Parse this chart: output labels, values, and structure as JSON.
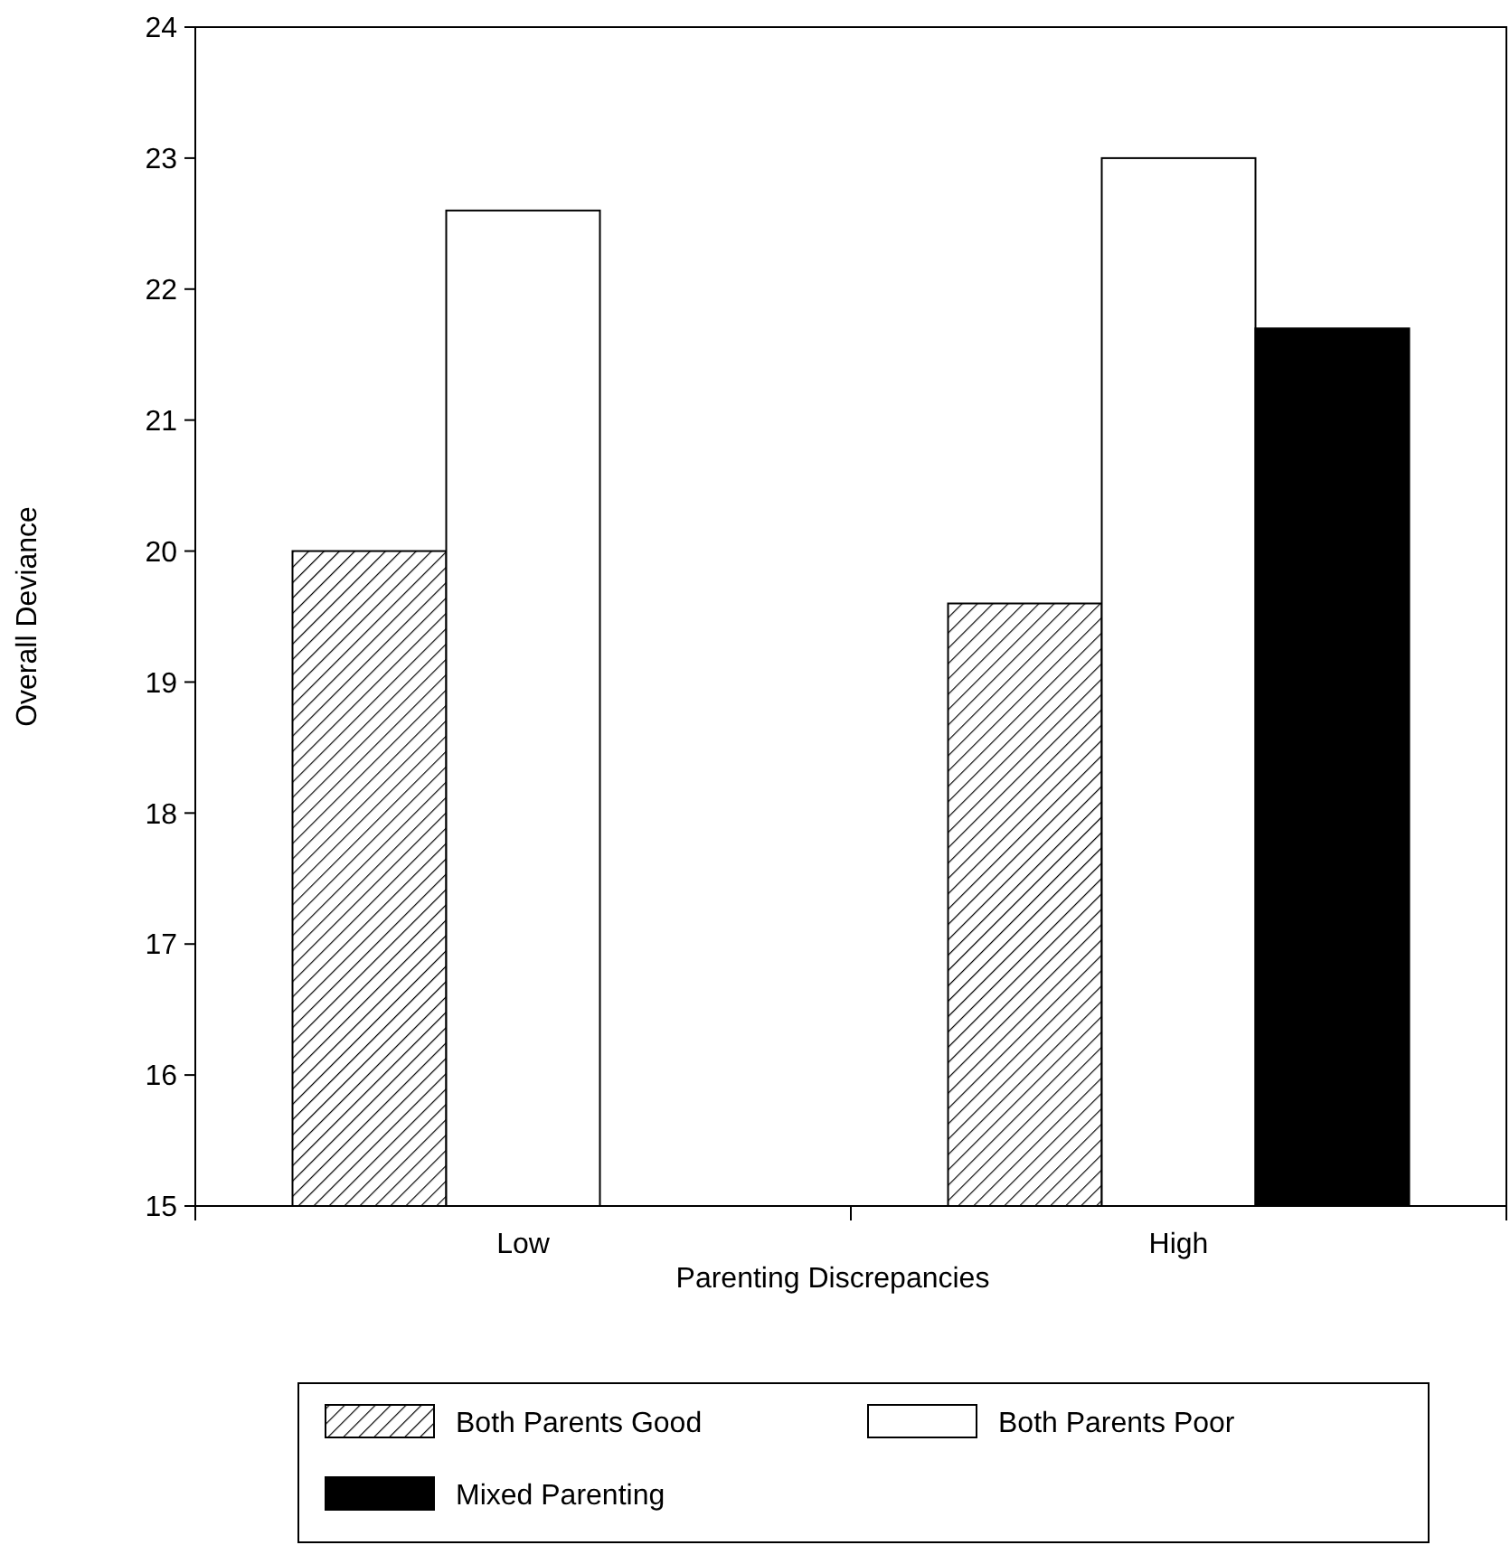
{
  "chart_data": {
    "type": "bar",
    "xlabel": "Parenting Discrepancies",
    "ylabel": "Overall Deviance",
    "categories": [
      "Low",
      "High"
    ],
    "series": [
      {
        "name": "Both Parents Good",
        "color": "#000000",
        "values": [
          20.0,
          19.6
        ]
      },
      {
        "name": "Both Parents Poor",
        "color": "#ffffff",
        "values": [
          22.6,
          23.0
        ]
      },
      {
        "name": "Mixed Parenting",
        "color": "#000000",
        "values": [
          null,
          21.7
        ]
      }
    ],
    "ylim": [
      15,
      24
    ],
    "yticks": [
      15,
      16,
      17,
      18,
      19,
      20,
      21,
      22,
      23,
      24
    ],
    "grid": false,
    "legend": "bottom"
  }
}
